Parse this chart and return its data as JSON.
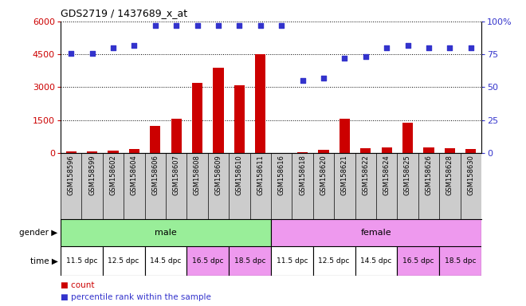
{
  "title": "GDS2719 / 1437689_x_at",
  "samples": [
    "GSM158596",
    "GSM158599",
    "GSM158602",
    "GSM158604",
    "GSM158606",
    "GSM158607",
    "GSM158608",
    "GSM158609",
    "GSM158610",
    "GSM158611",
    "GSM158616",
    "GSM158618",
    "GSM158620",
    "GSM158621",
    "GSM158622",
    "GSM158624",
    "GSM158625",
    "GSM158626",
    "GSM158628",
    "GSM158630"
  ],
  "counts": [
    55,
    80,
    120,
    170,
    1250,
    1580,
    3200,
    3900,
    3100,
    4520,
    5,
    30,
    160,
    1550,
    200,
    240,
    1380,
    270,
    200,
    190
  ],
  "percentiles": [
    76,
    76,
    80,
    82,
    97,
    97,
    97,
    97,
    97,
    97,
    97,
    55,
    57,
    72,
    73,
    80,
    82,
    80,
    80,
    80
  ],
  "bar_color": "#cc0000",
  "dot_color": "#3333cc",
  "left_ylim": [
    0,
    6000
  ],
  "right_ylim": [
    0,
    100
  ],
  "left_yticks": [
    0,
    1500,
    3000,
    4500,
    6000
  ],
  "right_yticks": [
    0,
    25,
    50,
    75,
    100
  ],
  "right_yticklabels": [
    "0",
    "25",
    "50",
    "75",
    "100%"
  ],
  "gender_male_color": "#99ee99",
  "gender_female_color": "#ee99ee",
  "time_labels": [
    "11.5 dpc",
    "12.5 dpc",
    "14.5 dpc",
    "16.5 dpc",
    "18.5 dpc"
  ],
  "male_time_colors": [
    "#ffffff",
    "#ffffff",
    "#ffffff",
    "#ee99ee",
    "#ee99ee"
  ],
  "female_time_colors": [
    "#ffffff",
    "#ffffff",
    "#ffffff",
    "#ee99ee",
    "#ee99ee"
  ],
  "tick_bg_color": "#cccccc",
  "background_color": "#ffffff"
}
